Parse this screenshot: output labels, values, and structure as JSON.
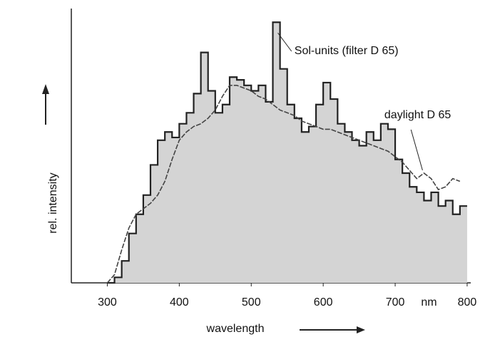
{
  "chart_data": {
    "type": "line",
    "x": [
      300,
      310,
      320,
      330,
      340,
      350,
      360,
      370,
      380,
      390,
      400,
      410,
      420,
      430,
      440,
      450,
      460,
      470,
      480,
      490,
      500,
      510,
      520,
      530,
      540,
      550,
      560,
      570,
      580,
      590,
      600,
      610,
      620,
      630,
      640,
      650,
      660,
      670,
      680,
      690,
      700,
      710,
      720,
      730,
      740,
      750,
      760,
      770,
      780,
      790
    ],
    "series": [
      {
        "name": "Sol-units (filter D 65)",
        "color": "#222",
        "drawstyle": "steps-post",
        "fill": "#d4d4d4",
        "values": [
          0,
          2,
          8,
          18,
          25,
          32,
          43,
          52,
          55,
          53,
          58,
          62,
          69,
          84,
          70,
          62,
          65,
          75,
          74,
          72,
          70,
          72,
          66,
          95,
          78,
          65,
          60,
          55,
          57,
          65,
          73,
          67,
          58,
          55,
          52,
          50,
          55,
          52,
          58,
          56,
          45,
          40,
          35,
          33,
          30,
          33,
          28,
          30,
          25,
          28
        ]
      },
      {
        "name": "daylight D 65",
        "color": "#444",
        "drawstyle": "default",
        "values": [
          0,
          3,
          12,
          20,
          25,
          27,
          29,
          32,
          37,
          45,
          52,
          55,
          57,
          58,
          60,
          63,
          68,
          72,
          72,
          71,
          70,
          68,
          67,
          65,
          63,
          62,
          61,
          59,
          58,
          57,
          56,
          56,
          55,
          54,
          53,
          52,
          51,
          50,
          49,
          48,
          46,
          44,
          41,
          38,
          40,
          38,
          34,
          35,
          38,
          37
        ]
      }
    ],
    "xlim": [
      250,
      805
    ],
    "ylim": [
      0,
      100
    ],
    "xticks": [
      300,
      400,
      500,
      600,
      700,
      800
    ],
    "x_unit": "nm",
    "xlabel": "wavelength",
    "ylabel": "rel. intensity"
  }
}
